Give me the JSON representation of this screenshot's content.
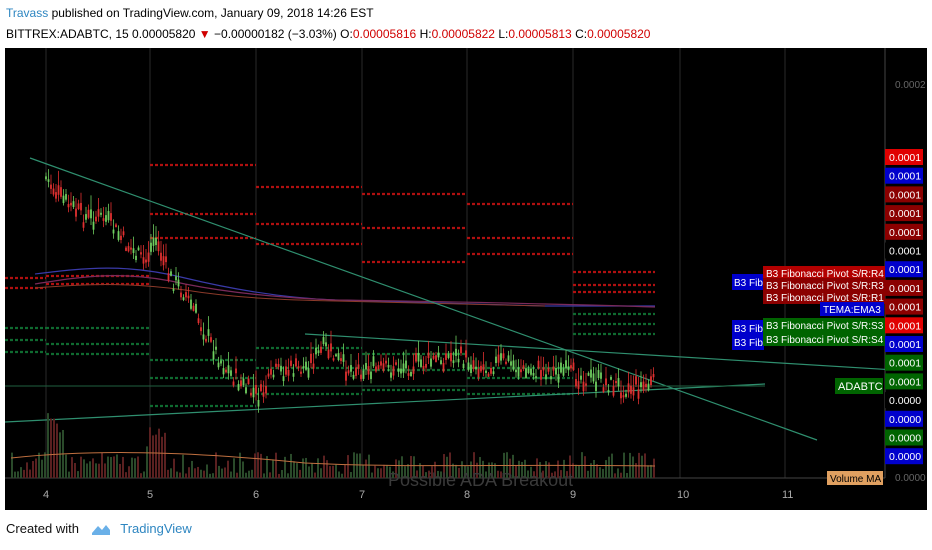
{
  "header": {
    "author": "Travass",
    "published": " published on TradingView.com, January 09, 2018 14:26 EST",
    "symbol": "BITTREX:ADABTC, 15",
    "price": "0.00005820",
    "change": "−0.00000182 (−3.03%)",
    "o_label": "O:",
    "o_value": "0.00005816",
    "h_label": "H:",
    "h_value": "0.00005822",
    "l_label": "L:",
    "l_value": "0.00005813",
    "c_label": "C:",
    "c_value": "0.00005820",
    "down_color": "#d00000"
  },
  "chart": {
    "watermark": "Possible ADA Breakout",
    "x_ticks": [
      "4",
      "5",
      "6",
      "7",
      "8",
      "9",
      "10",
      "11"
    ],
    "y_top_tick": "0.0002",
    "y_bottom_tick": "0.0000",
    "price_labels": [
      {
        "text": "0.0001",
        "color": "#e00000"
      },
      {
        "text": "0.0001",
        "color": "#0000cc"
      },
      {
        "text": "0.0001",
        "color": "#8b0000"
      },
      {
        "text": "0.0001",
        "color": "#8b0000"
      },
      {
        "text": "0.0001",
        "color": "#8b0000"
      },
      {
        "text": "0.0001",
        "color": "#000000"
      },
      {
        "text": "0.0001",
        "color": "#0000cc"
      },
      {
        "text": "0.0001",
        "color": "#8b0000"
      },
      {
        "text": "0.0001",
        "color": "#8b0000"
      },
      {
        "text": "0.0001",
        "color": "#e00000"
      },
      {
        "text": "0.0001",
        "color": "#0000cc"
      },
      {
        "text": "0.0001",
        "color": "#006400"
      },
      {
        "text": "0.0001",
        "color": "#006400"
      },
      {
        "text": "0.0000",
        "color": "#000000"
      },
      {
        "text": "0.0000",
        "color": "#0000cc"
      },
      {
        "text": "0.0000",
        "color": "#006400"
      },
      {
        "text": "0.0000",
        "color": "#0000cc"
      }
    ],
    "indicator_labels": [
      {
        "text": "B3 Fibonacci Pivot S/R:R4",
        "color": "#b30000"
      },
      {
        "text": "B3 Fibonacci Pivot S/R:R3",
        "color": "#8b0000"
      },
      {
        "text": "B3 Fibonacci Pivot S/R:R1",
        "color": "#8b0000"
      },
      {
        "text": "TEMA:EMA3",
        "color": "#0000cc"
      },
      {
        "text": "B3 Fibonacci Pivot S/R:S3",
        "color": "#006400"
      },
      {
        "text": "B3 Fibonacci Pivot S/R:S4",
        "color": "#006400"
      }
    ],
    "blue_tag": "B3 Fib",
    "symbol_tag": "ADABTC",
    "symbol_tag_color": "#006400",
    "volume_tag": "Volume MA",
    "volume_tag_color": "#e0a060"
  },
  "footer": {
    "created_with": "Created with",
    "brand": "TradingView"
  }
}
